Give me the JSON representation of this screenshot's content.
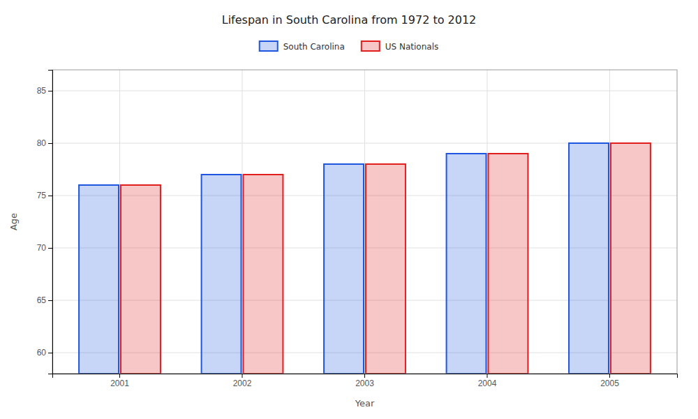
{
  "chart_data": {
    "type": "bar",
    "title": "Lifespan in South Carolina from 1972 to 2012",
    "x_label": "Year",
    "y_label": "Age",
    "categories": [
      "2001",
      "2002",
      "2003",
      "2004",
      "2005"
    ],
    "series": [
      {
        "name": "South Carolina",
        "color": "#1e56e0",
        "values": [
          76,
          77,
          78,
          79,
          80
        ]
      },
      {
        "name": "US Nationals",
        "color": "#e01e1e",
        "values": [
          76,
          77,
          78,
          79,
          80
        ]
      }
    ],
    "ylim": [
      58,
      87
    ],
    "yticks": [
      60,
      65,
      70,
      75,
      80,
      85
    ],
    "grid": true,
    "legend": "top"
  }
}
